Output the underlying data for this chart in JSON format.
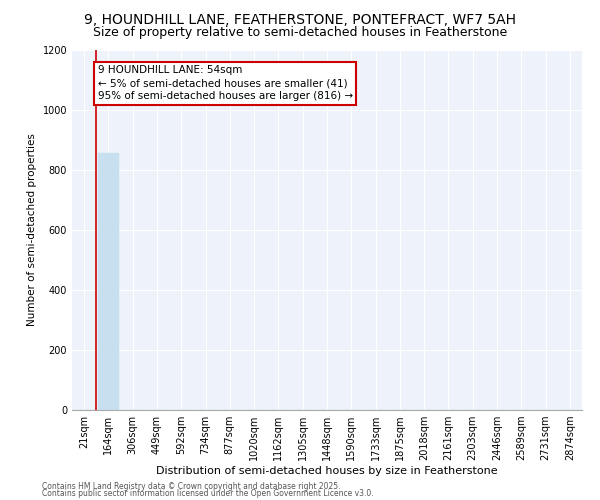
{
  "title1": "9, HOUNDHILL LANE, FEATHERSTONE, PONTEFRACT, WF7 5AH",
  "title2": "Size of property relative to semi-detached houses in Featherstone",
  "xlabel": "Distribution of semi-detached houses by size in Featherstone",
  "ylabel": "Number of semi-detached properties",
  "categories": [
    "21sqm",
    "164sqm",
    "306sqm",
    "449sqm",
    "592sqm",
    "734sqm",
    "877sqm",
    "1020sqm",
    "1162sqm",
    "1305sqm",
    "1448sqm",
    "1590sqm",
    "1733sqm",
    "1875sqm",
    "2018sqm",
    "2161sqm",
    "2303sqm",
    "2446sqm",
    "2589sqm",
    "2731sqm",
    "2874sqm"
  ],
  "values": [
    0,
    857,
    0,
    0,
    0,
    0,
    0,
    0,
    0,
    0,
    0,
    0,
    0,
    0,
    0,
    0,
    0,
    0,
    0,
    0,
    0
  ],
  "bar_color": "#c8dff0",
  "bar_edge_color": "#c8dff0",
  "vline_color": "#cc0000",
  "annotation_text": "9 HOUNDHILL LANE: 54sqm\n← 5% of semi-detached houses are smaller (41)\n95% of semi-detached houses are larger (816) →",
  "annotation_box_color": "#cc0000",
  "ylim": [
    0,
    1200
  ],
  "yticks": [
    0,
    200,
    400,
    600,
    800,
    1000,
    1200
  ],
  "footer1": "Contains HM Land Registry data © Crown copyright and database right 2025.",
  "footer2": "Contains public sector information licensed under the Open Government Licence v3.0.",
  "bg_color": "#eef2fa",
  "title1_fontsize": 10,
  "title2_fontsize": 9,
  "ann_fontsize": 7.5,
  "xlabel_fontsize": 8,
  "ylabel_fontsize": 7.5,
  "tick_fontsize": 7,
  "footer_fontsize": 5.5
}
